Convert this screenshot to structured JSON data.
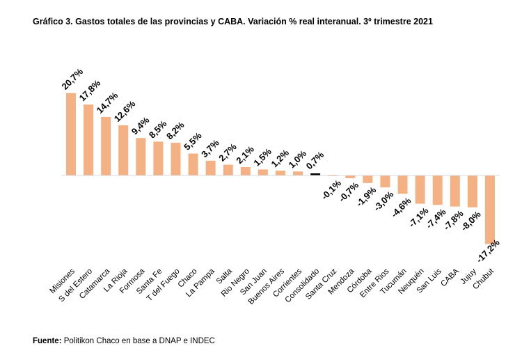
{
  "chart_data": {
    "type": "bar",
    "title": "Gráfico 3. Gastos totales de las provincias y CABA. Variación % real interanual. 3º trimestre 2021",
    "categories": [
      "Misiones",
      "S del Estero",
      "Catamarca",
      "La Rioja",
      "Formosa",
      "Santa Fe",
      "T del Fuego",
      "Chaco",
      "La Pampa",
      "Salta",
      "Rio Negro",
      "San Juan",
      "Buenos Aires",
      "Corrientes",
      "Consolidado",
      "Santa Cruz",
      "Mendoza",
      "Córdoba",
      "Entre Rios",
      "Tucumán",
      "Neuquén",
      "San Luis",
      "CABA",
      "Jujuy",
      "Chubut"
    ],
    "values": [
      20.7,
      17.8,
      14.7,
      12.6,
      9.4,
      8.5,
      8.2,
      5.5,
      3.7,
      2.7,
      2.1,
      1.5,
      1.2,
      1.0,
      0.7,
      -0.1,
      -0.7,
      -1.9,
      -3.0,
      -4.6,
      -7.1,
      -7.4,
      -7.8,
      -8.0,
      -17.2
    ],
    "data_labels": [
      "20,7%",
      "17,8%",
      "14,7%",
      "12,6%",
      "9,4%",
      "8,5%",
      "8,2%",
      "5,5%",
      "3,7%",
      "2,7%",
      "2,1%",
      "1,5%",
      "1,2%",
      "1,0%",
      "0,7%",
      "-0,1%",
      "-0,7%",
      "-1,9%",
      "-3,0%",
      "-4,6%",
      "-7,1%",
      "-7,4%",
      "-7,8%",
      "-8,0%",
      "-17,2%"
    ],
    "xlabel": "",
    "ylabel": "",
    "grid": false,
    "highlight_category": "Consolidado",
    "colors": {
      "bar": "#F4B183",
      "highlight": "#000000",
      "axis": "#D9D9D9"
    }
  },
  "source": {
    "label": "Fuente:",
    "text": " Politikon Chaco en base a DNAP e INDEC"
  }
}
